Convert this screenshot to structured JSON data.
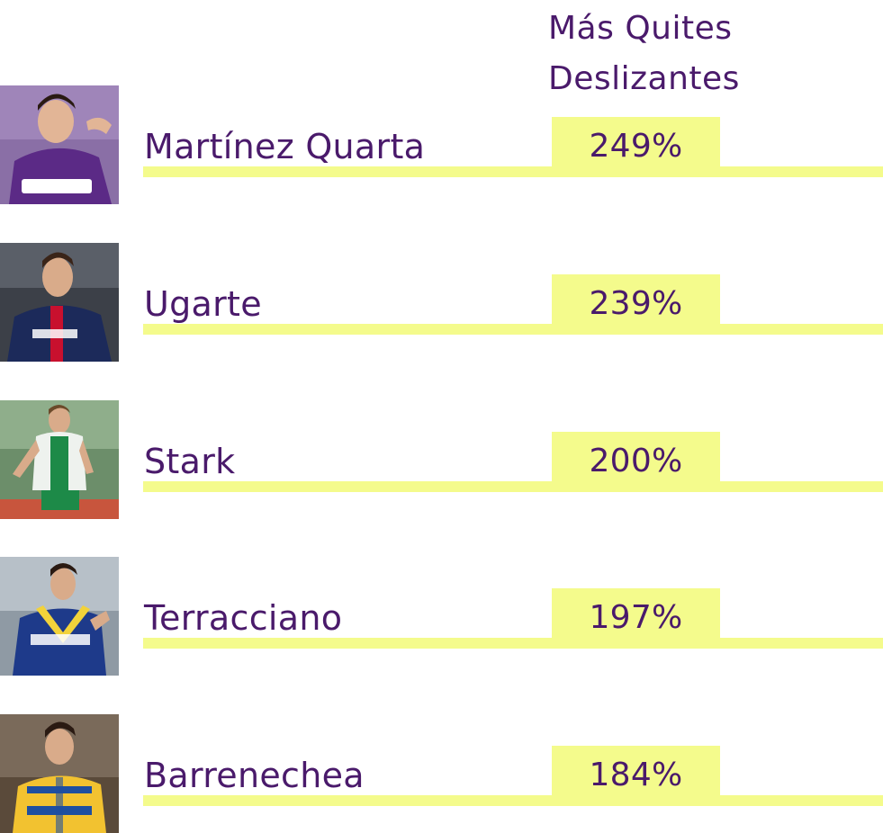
{
  "header": {
    "line1": "Más Quites",
    "line2": "Deslizantes"
  },
  "players": [
    {
      "name": "Martínez Quarta",
      "value": "249%",
      "photo_icon": "player-photo-icon",
      "kit_color": "#5b2a86",
      "bg_color": "#8a6fa6"
    },
    {
      "name": "Ugarte",
      "value": "239%",
      "photo_icon": "player-photo-icon",
      "kit_color": "#1c2a5a",
      "bg_color": "#3c4048"
    },
    {
      "name": "Stark",
      "value": "200%",
      "photo_icon": "player-photo-icon",
      "kit_color": "#1d8a48",
      "bg_color": "#6c8e6a"
    },
    {
      "name": "Terracciano",
      "value": "197%",
      "photo_icon": "player-photo-icon",
      "kit_color": "#1e3a8a",
      "bg_color": "#8f9aa4"
    },
    {
      "name": "Barrenechea",
      "value": "184%",
      "photo_icon": "player-photo-icon",
      "kit_color": "#f2c230",
      "bg_color": "#5a4a3a"
    }
  ],
  "colors": {
    "text": "#4a1a6b",
    "highlight": "#f4fb8c",
    "background": "#ffffff"
  }
}
